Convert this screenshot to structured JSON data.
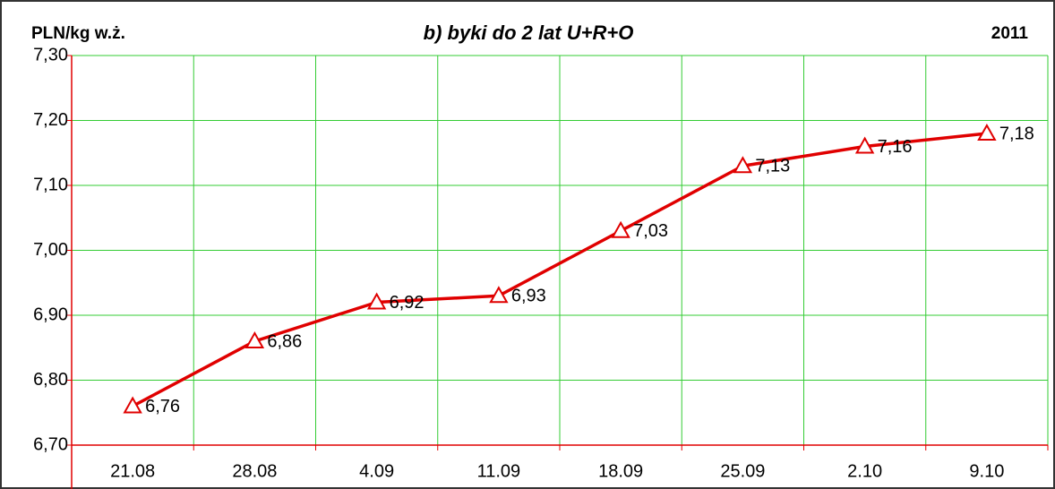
{
  "chart_data": {
    "type": "line",
    "title": "b) byki do 2 lat U+R+O",
    "y_label": "PLN/kg w.ż.",
    "subtitle": "2011",
    "categories": [
      "21.08",
      "28.08",
      "4.09",
      "11.09",
      "18.09",
      "25.09",
      "2.10",
      "9.10"
    ],
    "values": [
      6.76,
      6.86,
      6.92,
      6.93,
      7.03,
      7.13,
      7.16,
      7.18
    ],
    "value_labels": [
      "6,76",
      "6,86",
      "6,92",
      "6,93",
      "7,03",
      "7,13",
      "7,16",
      "7,18"
    ],
    "color": "#e00000",
    "ylim": [
      6.7,
      7.3
    ],
    "yticks": [
      {
        "value": 6.7,
        "label": "6,70"
      },
      {
        "value": 6.8,
        "label": "6,80"
      },
      {
        "value": 6.9,
        "label": "6,90"
      },
      {
        "value": 7.0,
        "label": "7,00"
      },
      {
        "value": 7.1,
        "label": "7,10"
      },
      {
        "value": 7.2,
        "label": "7,20"
      },
      {
        "value": 7.3,
        "label": "7,30"
      }
    ],
    "grid": true,
    "grid_color": "#33cc33",
    "axis_color": "#e00000"
  }
}
